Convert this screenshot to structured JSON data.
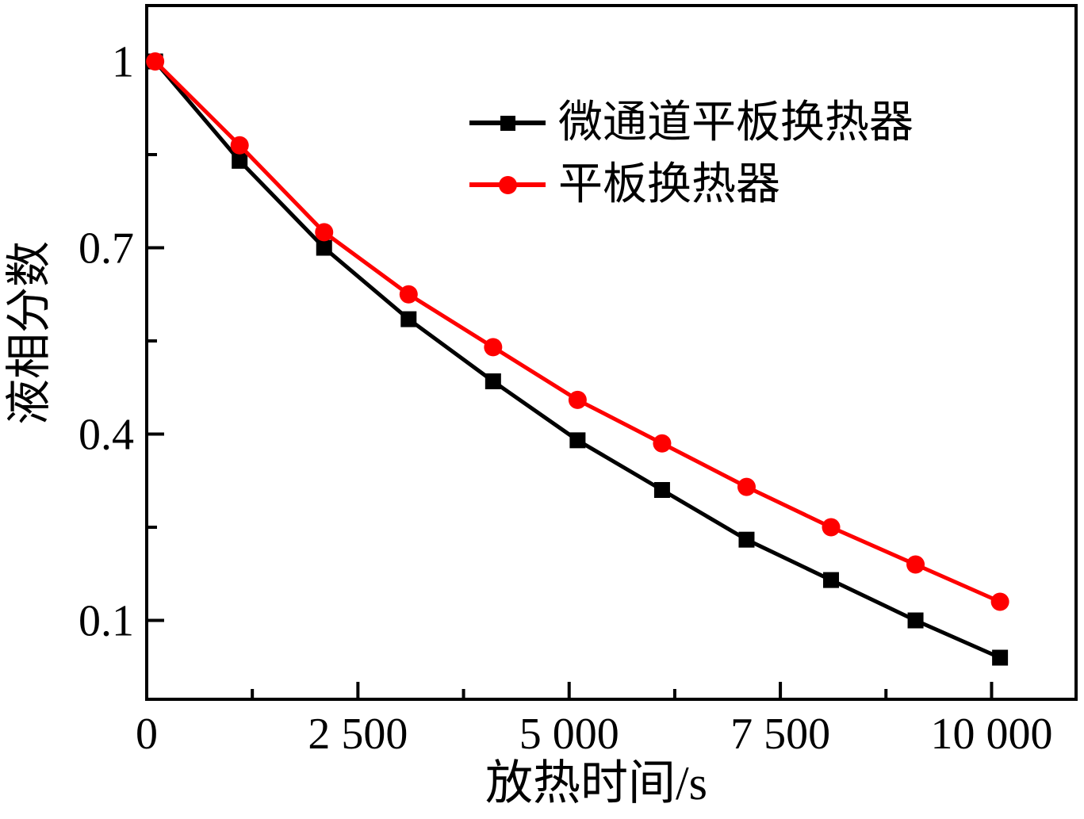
{
  "figure": {
    "background": "#ffffff",
    "axis_color": "#000000"
  },
  "chart_data": {
    "type": "line",
    "title": "",
    "xlabel": "放热时间/s",
    "ylabel": "液相分数",
    "x": [
      100,
      1100,
      2100,
      3100,
      4100,
      5100,
      6100,
      7100,
      8100,
      9100,
      10100
    ],
    "series": [
      {
        "name": "微通道平板换热器",
        "color": "#000000",
        "marker": "square",
        "values": [
          1.0,
          0.84,
          0.7,
          0.585,
          0.485,
          0.39,
          0.31,
          0.23,
          0.165,
          0.1,
          0.04
        ]
      },
      {
        "name": "平板换热器",
        "color": "#fe0000",
        "marker": "circle",
        "values": [
          1.0,
          0.865,
          0.725,
          0.625,
          0.54,
          0.455,
          0.385,
          0.315,
          0.25,
          0.19,
          0.13
        ]
      }
    ],
    "xlim": [
      0,
      11000
    ],
    "ylim": [
      -0.027,
      1.09
    ],
    "x_major_ticks": [
      0,
      2500,
      5000,
      7500,
      10000
    ],
    "x_major_labels": [
      "0",
      "2 500",
      "5 000",
      "7 500",
      "10 000"
    ],
    "x_minor_ticks": [
      1250,
      3750,
      6250,
      8750
    ],
    "y_major_ticks": [
      1,
      0.7,
      0.4,
      0.1
    ],
    "y_major_labels": [
      "1",
      "0.7",
      "0.4",
      "0.1"
    ],
    "y_minor_ticks": [
      0.85,
      0.55,
      0.25
    ],
    "grid": false,
    "legend_position": "upper-right-inside"
  }
}
